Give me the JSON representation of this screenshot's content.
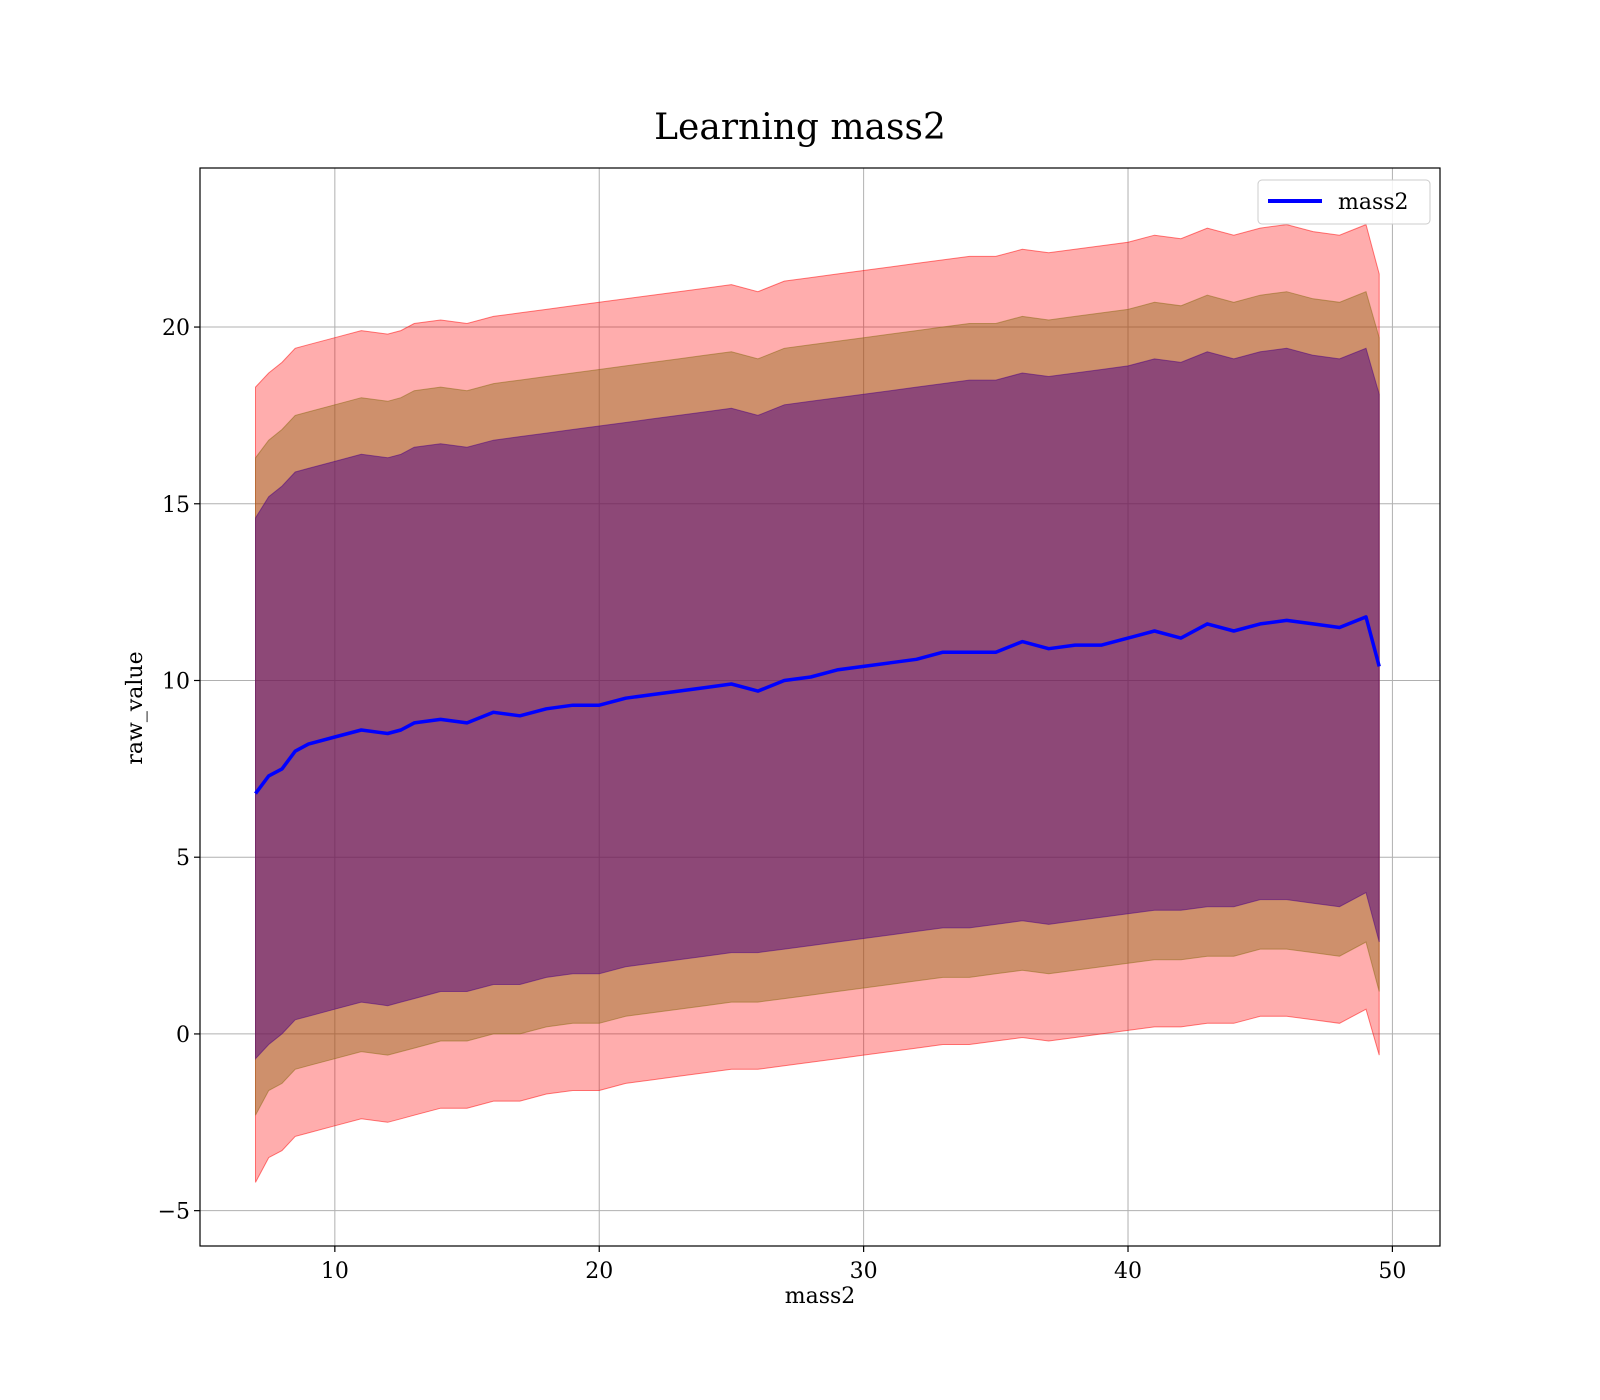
{
  "chart_data": {
    "type": "line",
    "title": "Learning mass2",
    "xlabel": "mass2",
    "ylabel": "raw_value",
    "xlim": [
      4.9,
      51.8
    ],
    "ylim": [
      -6.0,
      24.5
    ],
    "xticks": [
      10,
      20,
      30,
      40,
      50
    ],
    "yticks": [
      -5,
      0,
      5,
      10,
      15,
      20
    ],
    "xtick_labels": [
      "10",
      "20",
      "30",
      "40",
      "50"
    ],
    "ytick_labels": [
      "−5",
      "0",
      "5",
      "10",
      "15",
      "20"
    ],
    "grid": true,
    "legend": {
      "position": "top-right",
      "entries": [
        "mass2"
      ]
    },
    "colors": {
      "line": "#0000ff",
      "band": "#ff0000",
      "band2": "#8b6914",
      "band3": "#4b0082"
    },
    "x": [
      7.0,
      7.5,
      8.0,
      8.5,
      9.0,
      10.0,
      11.0,
      12.0,
      12.5,
      13.0,
      14.0,
      15.0,
      16.0,
      17.0,
      18.0,
      19.0,
      20.0,
      21.0,
      22.0,
      23.0,
      24.0,
      25.0,
      26.0,
      27.0,
      28.0,
      29.0,
      30.0,
      31.0,
      32.0,
      33.0,
      34.0,
      35.0,
      36.0,
      37.0,
      38.0,
      39.0,
      40.0,
      41.0,
      42.0,
      43.0,
      44.0,
      45.0,
      46.0,
      47.0,
      48.0,
      49.0,
      49.5
    ],
    "series": [
      {
        "name": "mass2",
        "values": [
          6.8,
          7.3,
          7.5,
          8.0,
          8.2,
          8.4,
          8.6,
          8.5,
          8.6,
          8.8,
          8.9,
          8.8,
          9.1,
          9.0,
          9.2,
          9.3,
          9.3,
          9.5,
          9.6,
          9.7,
          9.8,
          9.9,
          9.7,
          10.0,
          10.1,
          10.3,
          10.4,
          10.5,
          10.6,
          10.8,
          10.8,
          10.8,
          11.1,
          10.9,
          11.0,
          11.0,
          11.2,
          11.4,
          11.2,
          11.6,
          11.4,
          11.6,
          11.7,
          11.6,
          11.5,
          11.8,
          10.4
        ]
      }
    ],
    "bands": [
      {
        "lower": [
          -4.2,
          -3.5,
          -3.3,
          -2.9,
          -2.8,
          -2.6,
          -2.4,
          -2.5,
          -2.4,
          -2.3,
          -2.1,
          -2.1,
          -1.9,
          -1.9,
          -1.7,
          -1.6,
          -1.6,
          -1.4,
          -1.3,
          -1.2,
          -1.1,
          -1.0,
          -1.0,
          -0.9,
          -0.8,
          -0.7,
          -0.6,
          -0.5,
          -0.4,
          -0.3,
          -0.3,
          -0.2,
          -0.1,
          -0.2,
          -0.1,
          0.0,
          0.1,
          0.2,
          0.2,
          0.3,
          0.3,
          0.5,
          0.5,
          0.4,
          0.3,
          0.7,
          -0.6
        ],
        "upper": [
          18.3,
          18.7,
          19.0,
          19.4,
          19.5,
          19.7,
          19.9,
          19.8,
          19.9,
          20.1,
          20.2,
          20.1,
          20.3,
          20.4,
          20.5,
          20.6,
          20.7,
          20.8,
          20.9,
          21.0,
          21.1,
          21.2,
          21.0,
          21.3,
          21.4,
          21.5,
          21.6,
          21.7,
          21.8,
          21.9,
          22.0,
          22.0,
          22.2,
          22.1,
          22.2,
          22.3,
          22.4,
          22.6,
          22.5,
          22.8,
          22.6,
          22.8,
          22.9,
          22.7,
          22.6,
          22.9,
          21.5
        ]
      },
      {
        "lower": [
          -2.3,
          -1.6,
          -1.4,
          -1.0,
          -0.9,
          -0.7,
          -0.5,
          -0.6,
          -0.5,
          -0.4,
          -0.2,
          -0.2,
          0.0,
          0.0,
          0.2,
          0.3,
          0.3,
          0.5,
          0.6,
          0.7,
          0.8,
          0.9,
          0.9,
          1.0,
          1.1,
          1.2,
          1.3,
          1.4,
          1.5,
          1.6,
          1.6,
          1.7,
          1.8,
          1.7,
          1.8,
          1.9,
          2.0,
          2.1,
          2.1,
          2.2,
          2.2,
          2.4,
          2.4,
          2.3,
          2.2,
          2.6,
          1.2
        ],
        "upper": [
          16.3,
          16.8,
          17.1,
          17.5,
          17.6,
          17.8,
          18.0,
          17.9,
          18.0,
          18.2,
          18.3,
          18.2,
          18.4,
          18.5,
          18.6,
          18.7,
          18.8,
          18.9,
          19.0,
          19.1,
          19.2,
          19.3,
          19.1,
          19.4,
          19.5,
          19.6,
          19.7,
          19.8,
          19.9,
          20.0,
          20.1,
          20.1,
          20.3,
          20.2,
          20.3,
          20.4,
          20.5,
          20.7,
          20.6,
          20.9,
          20.7,
          20.9,
          21.0,
          20.8,
          20.7,
          21.0,
          19.7
        ]
      },
      {
        "lower": [
          -0.7,
          -0.3,
          0.0,
          0.4,
          0.5,
          0.7,
          0.9,
          0.8,
          0.9,
          1.0,
          1.2,
          1.2,
          1.4,
          1.4,
          1.6,
          1.7,
          1.7,
          1.9,
          2.0,
          2.1,
          2.2,
          2.3,
          2.3,
          2.4,
          2.5,
          2.6,
          2.7,
          2.8,
          2.9,
          3.0,
          3.0,
          3.1,
          3.2,
          3.1,
          3.2,
          3.3,
          3.4,
          3.5,
          3.5,
          3.6,
          3.6,
          3.8,
          3.8,
          3.7,
          3.6,
          4.0,
          2.6
        ],
        "upper": [
          14.6,
          15.2,
          15.5,
          15.9,
          16.0,
          16.2,
          16.4,
          16.3,
          16.4,
          16.6,
          16.7,
          16.6,
          16.8,
          16.9,
          17.0,
          17.1,
          17.2,
          17.3,
          17.4,
          17.5,
          17.6,
          17.7,
          17.5,
          17.8,
          17.9,
          18.0,
          18.1,
          18.2,
          18.3,
          18.4,
          18.5,
          18.5,
          18.7,
          18.6,
          18.7,
          18.8,
          18.9,
          19.1,
          19.0,
          19.3,
          19.1,
          19.3,
          19.4,
          19.2,
          19.1,
          19.4,
          18.1
        ]
      }
    ]
  }
}
